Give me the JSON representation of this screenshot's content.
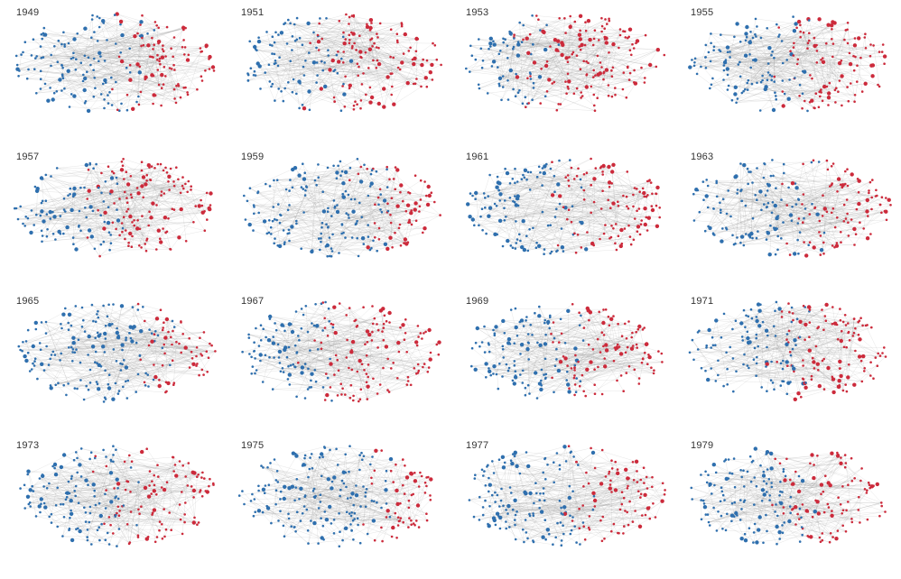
{
  "header": {
    "title_fragment": ""
  },
  "colors": {
    "cluster_a": "#2e6fae",
    "cluster_b": "#cc2a3b",
    "edge": "#7d7d7d",
    "background": "#ffffff"
  },
  "panels": [
    {
      "year": "1949",
      "split": 0.58
    },
    {
      "year": "1951",
      "split": 0.45
    },
    {
      "year": "1953",
      "split": 0.35
    },
    {
      "year": "1955",
      "split": 0.5
    },
    {
      "year": "1957",
      "split": 0.45
    },
    {
      "year": "1959",
      "split": 0.66
    },
    {
      "year": "1961",
      "split": 0.52
    },
    {
      "year": "1963",
      "split": 0.55
    },
    {
      "year": "1965",
      "split": 0.68
    },
    {
      "year": "1967",
      "split": 0.4
    },
    {
      "year": "1969",
      "split": 0.5
    },
    {
      "year": "1971",
      "split": 0.5
    },
    {
      "year": "1973",
      "split": 0.5
    },
    {
      "year": "1975",
      "split": 0.7
    },
    {
      "year": "1977",
      "split": 0.6
    },
    {
      "year": "1979",
      "split": 0.52
    }
  ]
}
